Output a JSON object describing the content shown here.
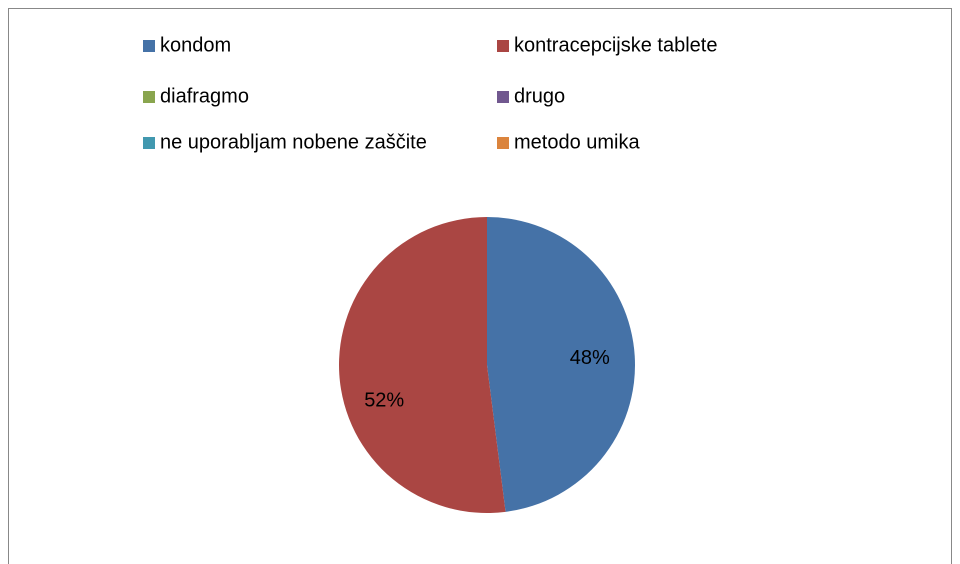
{
  "chart_data": {
    "type": "pie",
    "categories": [
      "kondom",
      "kontracepcijske tablete",
      "diafragmo",
      "drugo",
      "ne uporabljam nobene zaščite",
      "metodo umika"
    ],
    "values": [
      48,
      52,
      0,
      0,
      0,
      0
    ],
    "value_labels": [
      "48%",
      "52%",
      null,
      null,
      null,
      null
    ],
    "colors": [
      "#4572a7",
      "#aa4643",
      "#89a54e",
      "#71588f",
      "#4198af",
      "#db843d"
    ],
    "legend": "top"
  }
}
